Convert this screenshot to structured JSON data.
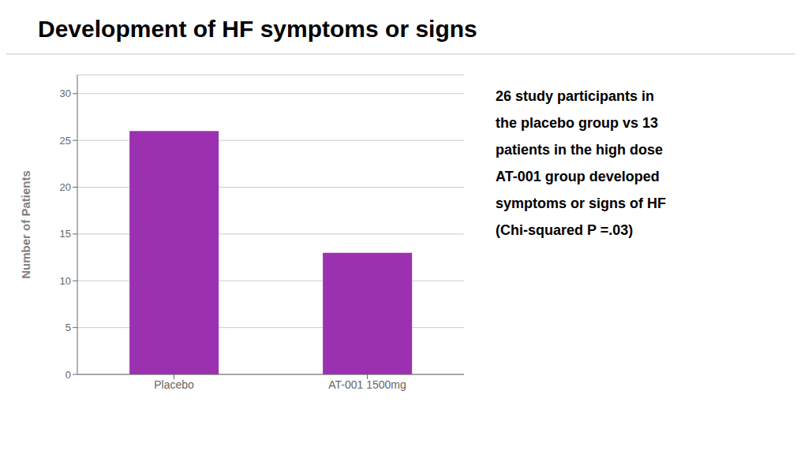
{
  "chart_data": {
    "type": "bar",
    "title": "Development of HF symptoms or signs",
    "categories": [
      "Placebo",
      "AT-001 1500mg"
    ],
    "values": [
      26,
      13
    ],
    "color": "#9B30B0",
    "ylabel": "Number of Patients",
    "ylim": [
      0,
      32
    ],
    "yticks": [
      0,
      5,
      10,
      15,
      20,
      25,
      30
    ],
    "grid": true,
    "annotations": [
      "26 study participants in",
      "the placebo group vs 13",
      "patients in the high dose",
      "AT-001 group developed",
      "symptoms or signs of HF",
      "(Chi-squared P =.03)"
    ]
  }
}
